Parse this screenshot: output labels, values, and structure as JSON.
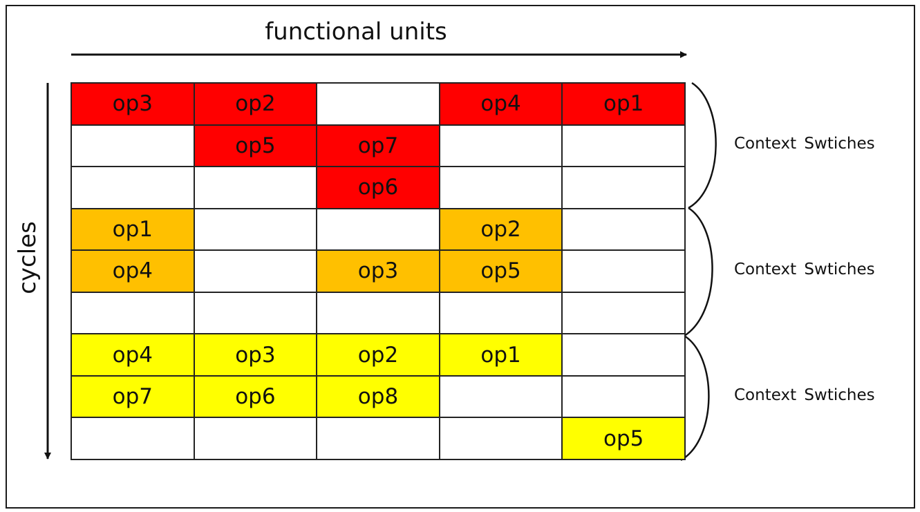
{
  "axes": {
    "x_title": "functional units",
    "y_title": "cycles"
  },
  "colors": {
    "red": "#ff0000",
    "orange": "#ffc000",
    "yellow": "#ffff00",
    "empty": "#ffffff"
  },
  "grid": {
    "rows": [
      [
        {
          "text": "op3",
          "color": "red"
        },
        {
          "text": "op2",
          "color": "red"
        },
        {
          "text": "",
          "color": "empty"
        },
        {
          "text": "op4",
          "color": "red"
        },
        {
          "text": "op1",
          "color": "red"
        }
      ],
      [
        {
          "text": "",
          "color": "empty"
        },
        {
          "text": "op5",
          "color": "red"
        },
        {
          "text": "op7",
          "color": "red"
        },
        {
          "text": "",
          "color": "empty"
        },
        {
          "text": "",
          "color": "empty"
        }
      ],
      [
        {
          "text": "",
          "color": "empty"
        },
        {
          "text": "",
          "color": "empty"
        },
        {
          "text": "op6",
          "color": "red"
        },
        {
          "text": "",
          "color": "empty"
        },
        {
          "text": "",
          "color": "empty"
        }
      ],
      [
        {
          "text": "op1",
          "color": "orange"
        },
        {
          "text": "",
          "color": "empty"
        },
        {
          "text": "",
          "color": "empty"
        },
        {
          "text": "op2",
          "color": "orange"
        },
        {
          "text": "",
          "color": "empty"
        }
      ],
      [
        {
          "text": "op4",
          "color": "orange"
        },
        {
          "text": "",
          "color": "empty"
        },
        {
          "text": "op3",
          "color": "orange"
        },
        {
          "text": "op5",
          "color": "orange"
        },
        {
          "text": "",
          "color": "empty"
        }
      ],
      [
        {
          "text": "",
          "color": "empty"
        },
        {
          "text": "",
          "color": "empty"
        },
        {
          "text": "",
          "color": "empty"
        },
        {
          "text": "",
          "color": "empty"
        },
        {
          "text": "",
          "color": "empty"
        }
      ],
      [
        {
          "text": "op4",
          "color": "yellow"
        },
        {
          "text": "op3",
          "color": "yellow"
        },
        {
          "text": "op2",
          "color": "yellow"
        },
        {
          "text": "op1",
          "color": "yellow"
        },
        {
          "text": "",
          "color": "empty"
        }
      ],
      [
        {
          "text": "op7",
          "color": "yellow"
        },
        {
          "text": "op6",
          "color": "yellow"
        },
        {
          "text": "op8",
          "color": "yellow"
        },
        {
          "text": "",
          "color": "empty"
        },
        {
          "text": "",
          "color": "empty"
        }
      ],
      [
        {
          "text": "",
          "color": "empty"
        },
        {
          "text": "",
          "color": "empty"
        },
        {
          "text": "",
          "color": "empty"
        },
        {
          "text": "",
          "color": "empty"
        },
        {
          "text": "op5",
          "color": "yellow"
        }
      ]
    ]
  },
  "context_labels": [
    {
      "text": "Context  Swtiches"
    },
    {
      "text": "Context  Swtiches"
    },
    {
      "text": "Context  Swtiches"
    }
  ]
}
